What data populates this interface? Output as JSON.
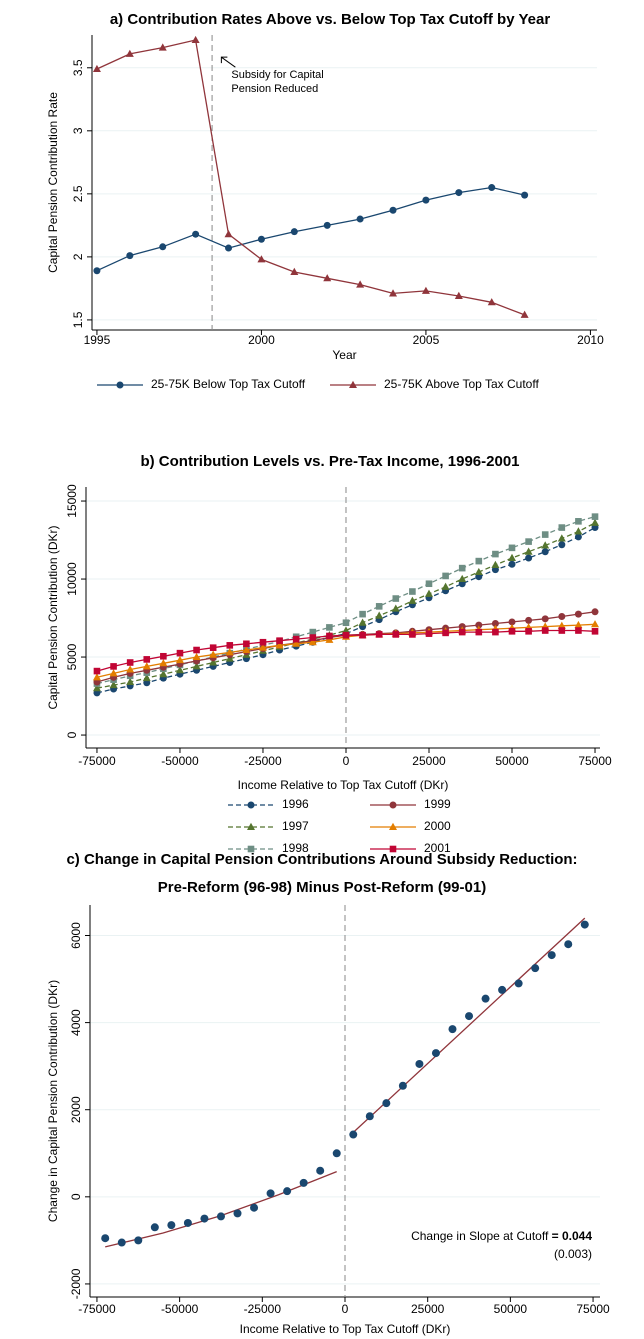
{
  "chart_data": [
    {
      "type": "line",
      "title": "a) Contribution Rates Above vs. Below Top Tax Cutoff by Year",
      "x_label": "Year",
      "y_label": "Capital Pension Contribution Rate",
      "x": [
        1995,
        1996,
        1997,
        1998,
        1999,
        2000,
        2001,
        2002,
        2003,
        2004,
        2005,
        2006,
        2007,
        2008
      ],
      "series": [
        {
          "name": "25-75K Below Top Tax Cutoff",
          "color": "#1a476f",
          "marker": "circle",
          "dashed": false,
          "values": [
            1.89,
            2.01,
            2.08,
            2.18,
            2.07,
            2.14,
            2.2,
            2.25,
            2.3,
            2.37,
            2.45,
            2.51,
            2.55,
            2.49
          ]
        },
        {
          "name": "25-75K Above Top Tax Cutoff",
          "color": "#90353b",
          "marker": "triangle",
          "dashed": false,
          "values": [
            3.49,
            3.61,
            3.66,
            3.72,
            2.18,
            1.98,
            1.88,
            1.83,
            1.78,
            1.71,
            1.73,
            1.69,
            1.64,
            1.54
          ]
        }
      ],
      "xlim": [
        1994.85,
        2010.2
      ],
      "ylim": [
        1.42,
        3.76
      ],
      "xticks": [
        1995,
        2000,
        2005,
        2010
      ],
      "yticks": [
        1.5,
        2,
        2.5,
        3,
        3.5
      ],
      "grid": true,
      "vline": 1998.5,
      "annotation": {
        "lines": [
          "Subsidy for Capital",
          "Pension Reduced"
        ],
        "x": 1998.6,
        "y": 3.6
      }
    },
    {
      "type": "line",
      "title": "b) Contribution Levels vs. Pre-Tax Income, 1996-2001",
      "x_label": "Income Relative to Top Tax Cutoff (DKr)",
      "y_label": "Capital Pension Contribution (DKr)",
      "x": [
        -75000,
        -70000,
        -65000,
        -60000,
        -55000,
        -50000,
        -45000,
        -40000,
        -35000,
        -30000,
        -25000,
        -20000,
        -15000,
        -10000,
        -5000,
        0,
        5000,
        10000,
        15000,
        20000,
        25000,
        30000,
        35000,
        40000,
        45000,
        50000,
        55000,
        60000,
        65000,
        70000,
        75000
      ],
      "series": [
        {
          "name": "1996",
          "color": "#1a476f",
          "marker": "circle",
          "dashed": true,
          "values": [
            2700,
            2950,
            3150,
            3350,
            3650,
            3900,
            4150,
            4400,
            4650,
            4900,
            5150,
            5450,
            5700,
            5950,
            6250,
            6500,
            6950,
            7400,
            7900,
            8350,
            8800,
            9250,
            9700,
            10150,
            10600,
            10950,
            11350,
            11750,
            12200,
            12700,
            13300
          ]
        },
        {
          "name": "1997",
          "color": "#55752f",
          "marker": "triangle",
          "dashed": true,
          "values": [
            3000,
            3200,
            3400,
            3650,
            3900,
            4150,
            4400,
            4650,
            4900,
            5150,
            5400,
            5650,
            5900,
            6150,
            6400,
            6700,
            7200,
            7650,
            8100,
            8600,
            9050,
            9500,
            10000,
            10450,
            10900,
            11350,
            11750,
            12150,
            12600,
            13050,
            13600
          ]
        },
        {
          "name": "1998",
          "color": "#6e8e84",
          "marker": "square",
          "dashed": true,
          "values": [
            3300,
            3550,
            3800,
            4000,
            4250,
            4500,
            4750,
            5000,
            5250,
            5500,
            5750,
            6000,
            6300,
            6600,
            6900,
            7200,
            7750,
            8250,
            8750,
            9200,
            9700,
            10200,
            10700,
            11150,
            11600,
            12000,
            12400,
            12850,
            13300,
            13700,
            14000
          ]
        },
        {
          "name": "1999",
          "color": "#90353b",
          "marker": "circle",
          "dashed": false,
          "values": [
            3400,
            3700,
            3950,
            4150,
            4350,
            4550,
            4750,
            4950,
            5150,
            5350,
            5550,
            5750,
            5900,
            6050,
            6250,
            6400,
            6450,
            6500,
            6550,
            6650,
            6750,
            6850,
            6950,
            7050,
            7150,
            7250,
            7350,
            7450,
            7600,
            7750,
            7900
          ]
        },
        {
          "name": "2000",
          "color": "#e37e00",
          "marker": "triangle",
          "dashed": false,
          "values": [
            3700,
            3950,
            4200,
            4400,
            4600,
            4800,
            5000,
            5150,
            5300,
            5450,
            5600,
            5750,
            5850,
            5950,
            6100,
            6300,
            6400,
            6450,
            6500,
            6550,
            6600,
            6650,
            6700,
            6750,
            6800,
            6850,
            6900,
            6950,
            7000,
            7050,
            7100
          ]
        },
        {
          "name": "2001",
          "color": "#c10534",
          "marker": "square",
          "dashed": false,
          "values": [
            4100,
            4400,
            4650,
            4850,
            5050,
            5250,
            5450,
            5600,
            5750,
            5850,
            5950,
            6050,
            6150,
            6250,
            6350,
            6400,
            6400,
            6450,
            6450,
            6450,
            6500,
            6550,
            6600,
            6600,
            6600,
            6650,
            6650,
            6700,
            6700,
            6700,
            6650
          ]
        }
      ],
      "xlim": [
        -78300,
        76500
      ],
      "ylim": [
        -830,
        15900
      ],
      "xticks": [
        -75000,
        -50000,
        -25000,
        0,
        25000,
        50000,
        75000
      ],
      "yticks": [
        0,
        5000,
        10000,
        15000
      ],
      "grid": true,
      "vline": 0
    },
    {
      "type": "scatter",
      "title": [
        "c) Change in Capital Pension Contributions Around Subsidy Reduction:",
        "Pre-Reform (96-98) Minus Post-Reform (99-01)"
      ],
      "x_label": "Income Relative to Top Tax Cutoff (DKr)",
      "y_label": "Change in Capital Pension Contribution (DKr)",
      "points": {
        "color": "#1a476f",
        "x": [
          -72500,
          -67500,
          -62500,
          -57500,
          -52500,
          -47500,
          -42500,
          -37500,
          -32500,
          -27500,
          -22500,
          -17500,
          -12500,
          -7500,
          -2500,
          2500,
          7500,
          12500,
          17500,
          22500,
          27500,
          32500,
          37500,
          42500,
          47500,
          52500,
          57500,
          62500,
          67500,
          72500
        ],
        "values": [
          -950,
          -1050,
          -1000,
          -700,
          -650,
          -600,
          -500,
          -450,
          -380,
          -250,
          80,
          130,
          320,
          600,
          1000,
          1430,
          1850,
          2150,
          2550,
          3050,
          3300,
          3850,
          4150,
          4550,
          4750,
          4900,
          5250,
          5550,
          5800,
          6250
        ]
      },
      "fit": [
        {
          "color": "#90353b",
          "x": [
            -72500,
            -55000,
            -37500,
            -20000,
            -2500
          ],
          "values": [
            -1150,
            -830,
            -430,
            50,
            580
          ]
        },
        {
          "color": "#90353b",
          "x": [
            2500,
            72500
          ],
          "values": [
            1480,
            6400
          ]
        }
      ],
      "xlim": [
        -77100,
        77100
      ],
      "ylim": [
        -2300,
        6700
      ],
      "xticks": [
        -75000,
        -50000,
        -25000,
        0,
        25000,
        50000,
        75000
      ],
      "yticks": [
        -2000,
        0,
        2000,
        4000,
        6000
      ],
      "grid": true,
      "vline": 0,
      "annotation": {
        "text": "Change in Slope at Cutoff",
        "value": "= 0.044",
        "se": "(0.003)"
      }
    }
  ]
}
